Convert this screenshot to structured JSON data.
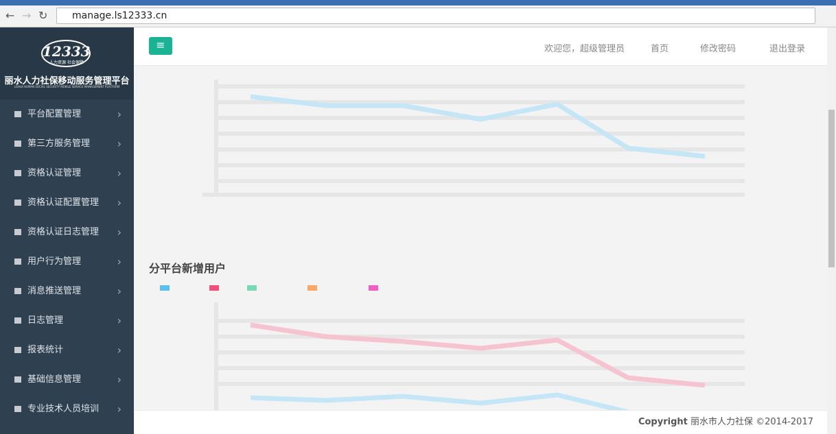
{
  "browser": {
    "url": "manage.ls12333.cn"
  },
  "sidebar": {
    "logo": "12333",
    "logo_slogan": "人力资源 社会保障",
    "platform_name": "丽水人力社保移动服务管理平台",
    "platform_name_en": "LISHUI HUMAN SOCIAL SECURITY MOBILE SERVICE MANAGEMENT PLATFORM",
    "menu": [
      "平台配置管理",
      "第三方服务管理",
      "资格认证管理",
      "资格认证配置管理",
      "资格认证日志管理",
      "用户行为管理",
      "消息推送管理",
      "日志管理",
      "报表统计",
      "基础信息管理",
      "专业技术人员培训"
    ]
  },
  "header": {
    "welcome": "欢迎您，超级管理员",
    "home": "首页",
    "change_password": "修改密码",
    "logout": "退出登录"
  },
  "content": {
    "section_title": "分平台新增用户"
  },
  "footer": {
    "copyright": "Copyright",
    "text": "丽水市人力社保 ©2014-2017"
  }
}
